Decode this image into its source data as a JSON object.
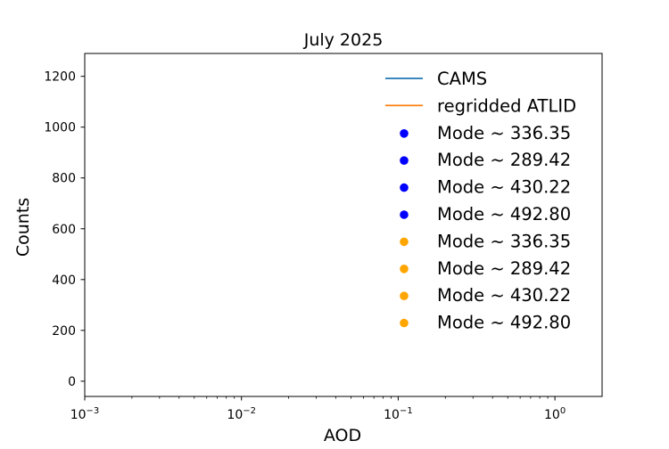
{
  "chart_data": {
    "type": "line",
    "title": "July 2025",
    "xlabel": "AOD",
    "ylabel": "Counts",
    "xscale": "log",
    "xlim": [
      0.001,
      2.0
    ],
    "ylim": [
      -60,
      1290
    ],
    "xticks": [
      {
        "value": 0.001,
        "base": "10",
        "exp": "−3"
      },
      {
        "value": 0.01,
        "base": "10",
        "exp": "−2"
      },
      {
        "value": 0.1,
        "base": "10",
        "exp": "−1"
      },
      {
        "value": 1,
        "base": "10",
        "exp": "0"
      }
    ],
    "yticks": [
      0,
      200,
      400,
      600,
      800,
      1000,
      1200
    ],
    "grid": false,
    "legend_position": "top-right",
    "series": [
      {
        "name": "CAMS",
        "kind": "line",
        "color": "#1f77b4",
        "x": [],
        "y": []
      },
      {
        "name": "regridded ATLID",
        "kind": "line",
        "color": "#ff7f0e",
        "x": [],
        "y": []
      }
    ],
    "markers": [
      {
        "label": "Mode ~ 336.35",
        "color": "#0000ff"
      },
      {
        "label": "Mode ~ 289.42",
        "color": "#0000ff"
      },
      {
        "label": "Mode ~ 430.22",
        "color": "#0000ff"
      },
      {
        "label": "Mode ~ 492.80",
        "color": "#0000ff"
      },
      {
        "label": "Mode ~ 336.35",
        "color": "#ffa500"
      },
      {
        "label": "Mode ~ 289.42",
        "color": "#ffa500"
      },
      {
        "label": "Mode ~ 430.22",
        "color": "#ffa500"
      },
      {
        "label": "Mode ~ 492.80",
        "color": "#ffa500"
      }
    ]
  }
}
